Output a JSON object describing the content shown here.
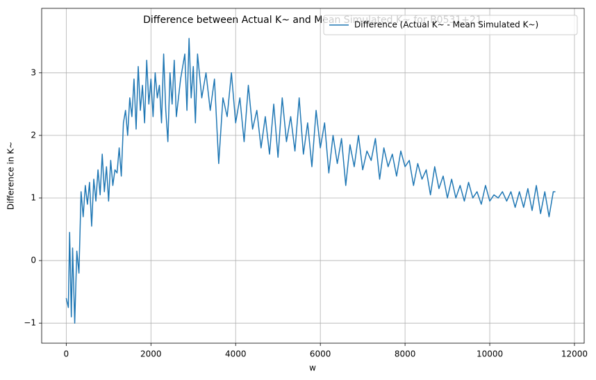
{
  "chart_data": {
    "type": "line",
    "title": "Difference between Actual K~ and Mean Simulated K~ for B0531+21",
    "x_label": "w",
    "y_label": "Difference in K~",
    "xlim": [
      -580,
      12230
    ],
    "ylim": [
      -1.32,
      4.03
    ],
    "xticks": [
      0,
      2000,
      4000,
      6000,
      8000,
      10000,
      12000
    ],
    "yticks": [
      {
        "value": -1,
        "label": "−1"
      },
      0,
      1,
      2,
      3
    ],
    "grid": true,
    "legend": "upper right",
    "x": [
      0,
      50,
      80,
      120,
      150,
      200,
      250,
      300,
      350,
      400,
      450,
      500,
      550,
      600,
      650,
      700,
      750,
      800,
      850,
      900,
      950,
      1000,
      1050,
      1100,
      1150,
      1200,
      1250,
      1300,
      1350,
      1400,
      1450,
      1500,
      1550,
      1600,
      1650,
      1700,
      1750,
      1800,
      1850,
      1900,
      1950,
      2000,
      2050,
      2100,
      2150,
      2200,
      2250,
      2300,
      2350,
      2400,
      2450,
      2500,
      2550,
      2600,
      2700,
      2800,
      2850,
      2900,
      2950,
      3000,
      3050,
      3100,
      3200,
      3300,
      3400,
      3500,
      3600,
      3700,
      3800,
      3900,
      4000,
      4100,
      4200,
      4300,
      4400,
      4500,
      4600,
      4700,
      4800,
      4900,
      5000,
      5100,
      5200,
      5300,
      5400,
      5500,
      5600,
      5700,
      5800,
      5900,
      6000,
      6100,
      6200,
      6300,
      6400,
      6500,
      6600,
      6700,
      6800,
      6900,
      7000,
      7100,
      7200,
      7300,
      7400,
      7500,
      7600,
      7700,
      7800,
      7900,
      8000,
      8100,
      8200,
      8300,
      8400,
      8500,
      8600,
      8700,
      8800,
      8900,
      9000,
      9100,
      9200,
      9300,
      9400,
      9500,
      9600,
      9700,
      9800,
      9900,
      10000,
      10100,
      10200,
      10300,
      10400,
      10500,
      10600,
      10700,
      10800,
      10900,
      11000,
      11100,
      11200,
      11300,
      11400,
      11500,
      11550
    ],
    "series": [
      {
        "name": "Difference (Actual K~ - Mean Simulated K~)",
        "color": "#1f77b4",
        "values": [
          -0.6,
          -0.75,
          0.45,
          -0.9,
          0.2,
          -1.0,
          0.15,
          -0.2,
          1.1,
          0.7,
          1.2,
          0.9,
          1.25,
          0.55,
          1.3,
          0.95,
          1.45,
          1.05,
          1.7,
          1.1,
          1.5,
          0.95,
          1.6,
          1.2,
          1.45,
          1.4,
          1.8,
          1.35,
          2.2,
          2.4,
          2.0,
          2.6,
          2.3,
          2.9,
          2.1,
          3.1,
          2.4,
          2.8,
          2.2,
          3.2,
          2.5,
          2.9,
          2.3,
          3.0,
          2.6,
          2.8,
          2.2,
          3.3,
          2.4,
          1.9,
          3.0,
          2.5,
          3.2,
          2.3,
          2.9,
          3.3,
          2.4,
          3.55,
          2.6,
          3.1,
          2.2,
          3.3,
          2.6,
          3.0,
          2.4,
          2.9,
          1.55,
          2.6,
          2.3,
          3.0,
          2.2,
          2.6,
          1.9,
          2.8,
          2.1,
          2.4,
          1.8,
          2.3,
          1.7,
          2.5,
          1.65,
          2.6,
          1.9,
          2.3,
          1.75,
          2.6,
          1.7,
          2.2,
          1.5,
          2.4,
          1.8,
          2.2,
          1.4,
          2.0,
          1.55,
          1.95,
          1.2,
          1.85,
          1.5,
          2.0,
          1.45,
          1.75,
          1.6,
          1.95,
          1.3,
          1.8,
          1.5,
          1.7,
          1.35,
          1.75,
          1.5,
          1.6,
          1.2,
          1.55,
          1.3,
          1.45,
          1.05,
          1.5,
          1.15,
          1.35,
          1.0,
          1.3,
          1.0,
          1.2,
          0.95,
          1.25,
          1.0,
          1.1,
          0.9,
          1.2,
          0.95,
          1.05,
          1.0,
          1.1,
          0.95,
          1.1,
          0.85,
          1.1,
          0.85,
          1.15,
          0.8,
          1.2,
          0.75,
          1.1,
          0.7,
          1.1,
          1.1
        ]
      }
    ]
  }
}
